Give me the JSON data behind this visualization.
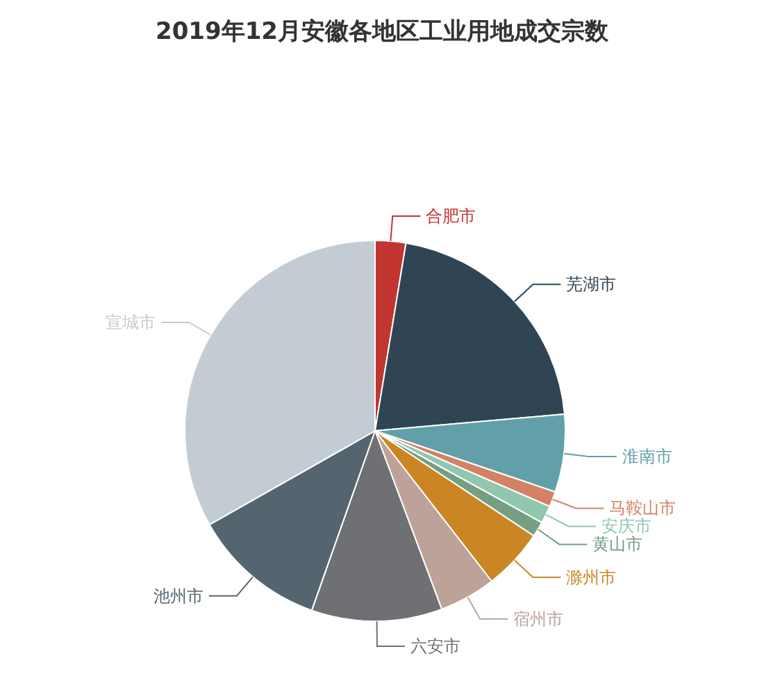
{
  "chart_data": {
    "type": "pie",
    "title": "2019年12月安徽各地区工业用地成交宗数",
    "categories": [
      "合肥市",
      "芜湖市",
      "淮南市",
      "马鞍山市",
      "安庆市",
      "黄山市",
      "滁州市",
      "宿州市",
      "六安市",
      "池州市",
      "宣城市"
    ],
    "values": [
      2.6,
      21,
      6.6,
      1.3,
      1.5,
      1.3,
      5.2,
      4.8,
      11.1,
      11.4,
      33.2
    ],
    "colors": [
      "#c23531",
      "#2f4554",
      "#61a0a8",
      "#d48265",
      "#91c7ae",
      "#749f83",
      "#ca8622",
      "#bda29a",
      "#6e7074",
      "#546570",
      "#c4ccd3"
    ]
  }
}
